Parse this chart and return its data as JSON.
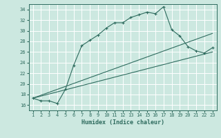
{
  "xlabel": "Humidex (Indice chaleur)",
  "bg_color": "#cce8e0",
  "grid_color": "#ffffff",
  "line_color": "#2e6b5e",
  "xlim": [
    0.5,
    23.5
  ],
  "ylim": [
    15,
    35
  ],
  "yticks": [
    16,
    18,
    20,
    22,
    24,
    26,
    28,
    30,
    32,
    34
  ],
  "xticks": [
    1,
    2,
    3,
    4,
    5,
    6,
    7,
    8,
    9,
    10,
    11,
    12,
    13,
    14,
    15,
    16,
    17,
    18,
    19,
    20,
    21,
    22,
    23
  ],
  "curve1_x": [
    1,
    2,
    3,
    4,
    5,
    6,
    7,
    8,
    9,
    10,
    11,
    12,
    13,
    14,
    15,
    16,
    17,
    18,
    19,
    20,
    21,
    22,
    23
  ],
  "curve1_y": [
    17.3,
    16.8,
    16.8,
    16.3,
    19.0,
    23.5,
    27.2,
    28.2,
    29.2,
    30.5,
    31.5,
    31.5,
    32.5,
    33.0,
    33.5,
    33.2,
    34.5,
    30.2,
    29.0,
    27.0,
    26.2,
    25.8,
    26.8
  ],
  "line2_x": [
    1,
    23
  ],
  "line2_y": [
    17.3,
    29.5
  ],
  "line3_x": [
    1,
    23
  ],
  "line3_y": [
    17.3,
    26.0
  ],
  "xlabel_fontsize": 6.0,
  "tick_fontsize": 5.0
}
